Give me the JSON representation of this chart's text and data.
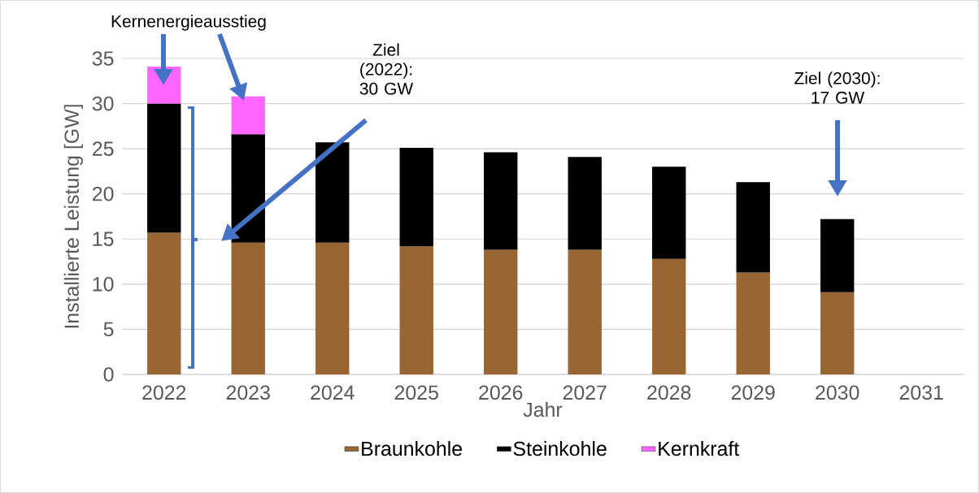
{
  "chart_data": {
    "type": "bar",
    "stacked": true,
    "xlabel": "Jahr",
    "ylabel": "Installierte Leistung [GW]",
    "categories": [
      "2022",
      "2023",
      "2024",
      "2025",
      "2026",
      "2027",
      "2028",
      "2029",
      "2030",
      "2031"
    ],
    "series": [
      {
        "name": "Braunkohle",
        "color": "#996633",
        "values": [
          15.7,
          14.6,
          14.6,
          14.2,
          13.8,
          13.8,
          12.8,
          11.3,
          9.1,
          null
        ]
      },
      {
        "name": "Steinkohle",
        "color": "#000000",
        "values": [
          14.3,
          12.0,
          11.1,
          10.9,
          10.8,
          10.3,
          10.2,
          10.0,
          8.1,
          null
        ]
      },
      {
        "name": "Kernkraft",
        "color": "#ff66ff",
        "values": [
          4.1,
          4.2,
          null,
          null,
          null,
          null,
          null,
          null,
          null,
          null
        ]
      }
    ],
    "ylim": [
      0,
      35
    ],
    "yticks": [
      0,
      5,
      10,
      15,
      20,
      25,
      30,
      35
    ],
    "grid": "y",
    "legend": "bottom",
    "annotations": [
      "Kernenergieausstieg",
      "Ziel (2022): 30 GW",
      "Ziel (2030): 17 GW"
    ]
  }
}
